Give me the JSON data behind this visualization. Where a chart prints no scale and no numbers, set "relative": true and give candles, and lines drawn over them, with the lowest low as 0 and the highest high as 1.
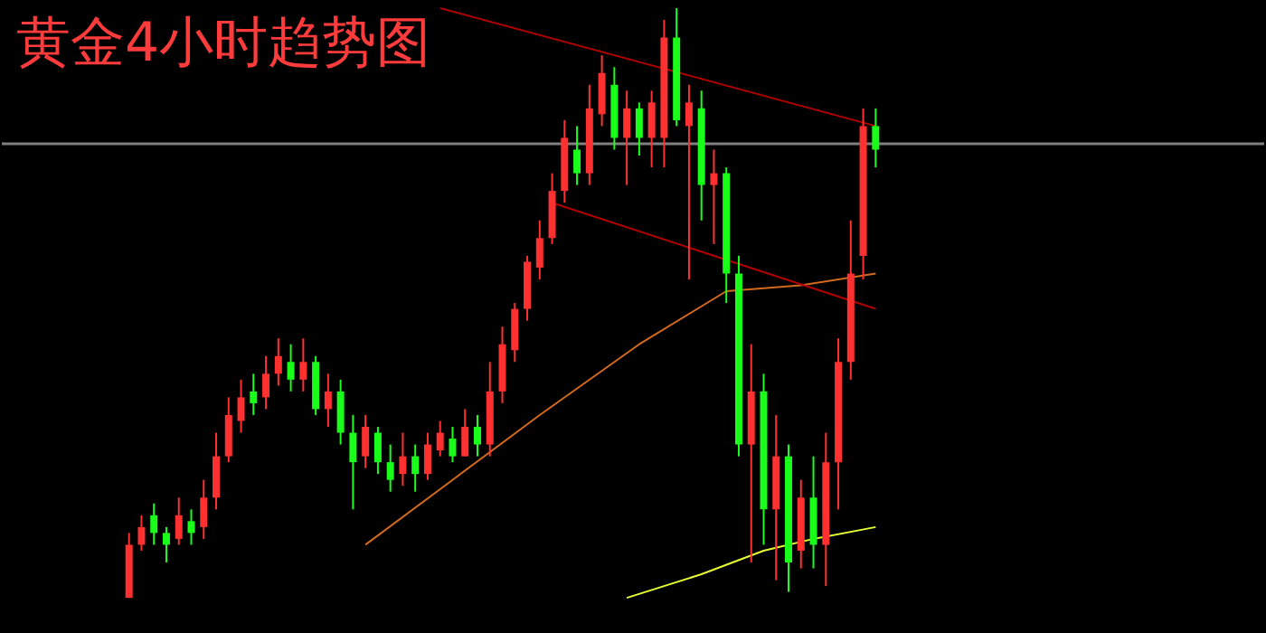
{
  "chart_data": {
    "type": "candlestick",
    "title": "黄金4小时趋势图",
    "relative": true,
    "categories": [
      null,
      null,
      null,
      null,
      null,
      null,
      null,
      null,
      null,
      null,
      null,
      null,
      null,
      null,
      null,
      null,
      null,
      null,
      null,
      null,
      null,
      null,
      null,
      null,
      null,
      null,
      null,
      null,
      null,
      null,
      null,
      null,
      null,
      null,
      null,
      null,
      null,
      null,
      null,
      null,
      null,
      null,
      null,
      null,
      null,
      null,
      null,
      null,
      null,
      null,
      null,
      null,
      null,
      null,
      null,
      null,
      null,
      null,
      null,
      null,
      null
    ],
    "ohlc": [
      [
        0,
        0.11,
        0,
        0.09
      ],
      [
        0.09,
        0.14,
        0.08,
        0.12
      ],
      [
        0.14,
        0.16,
        0.09,
        0.11
      ],
      [
        0.11,
        0.12,
        0.06,
        0.09
      ],
      [
        0.1,
        0.17,
        0.09,
        0.14
      ],
      [
        0.13,
        0.15,
        0.09,
        0.11
      ],
      [
        0.12,
        0.2,
        0.1,
        0.17
      ],
      [
        0.17,
        0.28,
        0.15,
        0.24
      ],
      [
        0.24,
        0.34,
        0.23,
        0.31
      ],
      [
        0.3,
        0.37,
        0.28,
        0.34
      ],
      [
        0.35,
        0.38,
        0.31,
        0.33
      ],
      [
        0.34,
        0.41,
        0.32,
        0.38
      ],
      [
        0.38,
        0.44,
        0.36,
        0.41
      ],
      [
        0.4,
        0.43,
        0.35,
        0.37
      ],
      [
        0.37,
        0.44,
        0.35,
        0.4
      ],
      [
        0.4,
        0.41,
        0.31,
        0.32
      ],
      [
        0.32,
        0.38,
        0.29,
        0.35
      ],
      [
        0.35,
        0.37,
        0.26,
        0.28
      ],
      [
        0.28,
        0.31,
        0.15,
        0.23
      ],
      [
        0.24,
        0.31,
        0.22,
        0.29
      ],
      [
        0.28,
        0.29,
        0.21,
        0.23
      ],
      [
        0.23,
        0.26,
        0.18,
        0.2
      ],
      [
        0.21,
        0.28,
        0.19,
        0.24
      ],
      [
        0.24,
        0.26,
        0.18,
        0.21
      ],
      [
        0.21,
        0.28,
        0.2,
        0.26
      ],
      [
        0.25,
        0.3,
        0.24,
        0.28
      ],
      [
        0.27,
        0.29,
        0.23,
        0.24
      ],
      [
        0.24,
        0.32,
        0.24,
        0.29
      ],
      [
        0.29,
        0.31,
        0.24,
        0.26
      ],
      [
        0.26,
        0.4,
        0.24,
        0.35
      ],
      [
        0.35,
        0.46,
        0.33,
        0.43
      ],
      [
        0.42,
        0.5,
        0.4,
        0.49
      ],
      [
        0.49,
        0.58,
        0.47,
        0.57
      ],
      [
        0.56,
        0.64,
        0.54,
        0.61
      ],
      [
        0.61,
        0.72,
        0.6,
        0.69
      ],
      [
        0.69,
        0.81,
        0.67,
        0.78
      ],
      [
        0.76,
        0.8,
        0.7,
        0.72
      ],
      [
        0.72,
        0.87,
        0.7,
        0.83
      ],
      [
        0.82,
        0.92,
        0.8,
        0.89
      ],
      [
        0.87,
        0.9,
        0.76,
        0.78
      ],
      [
        0.78,
        0.86,
        0.7,
        0.83
      ],
      [
        0.83,
        0.84,
        0.75,
        0.78
      ],
      [
        0.78,
        0.86,
        0.73,
        0.84
      ],
      [
        0.78,
        0.98,
        0.73,
        0.95
      ],
      [
        0.95,
        1,
        0.8,
        0.81
      ],
      [
        0.8,
        0.87,
        0.54,
        0.84
      ],
      [
        0.83,
        0.86,
        0.64,
        0.7
      ],
      [
        0.7,
        0.76,
        0.6,
        0.72
      ],
      [
        0.72,
        0.73,
        0.5,
        0.55
      ],
      [
        0.55,
        0.58,
        0.24,
        0.26
      ],
      [
        0.26,
        0.43,
        0.06,
        0.35
      ],
      [
        0.35,
        0.38,
        0.09,
        0.15
      ],
      [
        0.15,
        0.31,
        0.03,
        0.24
      ],
      [
        0.24,
        0.26,
        0.01,
        0.06
      ],
      [
        0.08,
        0.2,
        0.05,
        0.17
      ],
      [
        0.17,
        0.24,
        0.05,
        0.09
      ],
      [
        0.09,
        0.28,
        0.02,
        0.23
      ],
      [
        0.23,
        0.44,
        0.15,
        0.4
      ],
      [
        0.4,
        0.64,
        0.37,
        0.55
      ],
      [
        0.58,
        0.83,
        0.54,
        0.8
      ],
      [
        0.8,
        0.83,
        0.73,
        0.76
      ]
    ],
    "series": [
      {
        "type": "line",
        "color": "#e5ff33",
        "values": [
          null,
          null,
          null,
          null,
          null,
          null,
          null,
          null,
          null,
          null,
          null,
          null,
          null,
          null,
          null,
          null,
          null,
          null,
          null,
          null,
          null,
          null,
          null,
          null,
          null,
          null,
          null,
          null,
          null,
          null,
          null,
          null,
          null,
          null,
          null,
          null,
          null,
          null,
          null,
          null,
          0,
          null,
          null,
          null,
          null,
          null,
          0.04,
          null,
          null,
          null,
          null,
          0.08,
          null,
          null,
          null,
          0.1,
          null,
          null,
          null,
          null,
          0.12
        ]
      },
      {
        "type": "line",
        "color": "#d2691e",
        "values": [
          null,
          null,
          null,
          null,
          null,
          null,
          null,
          null,
          null,
          null,
          null,
          null,
          null,
          null,
          null,
          null,
          null,
          null,
          null,
          0.09,
          null,
          null,
          null,
          null,
          null,
          null,
          0.2,
          null,
          null,
          null,
          null,
          null,
          null,
          0.31,
          null,
          null,
          null,
          null,
          null,
          null,
          null,
          0.43,
          null,
          null,
          null,
          null,
          null,
          null,
          0.52,
          null,
          null,
          null,
          null,
          null,
          0.53,
          null,
          null,
          null,
          null,
          null,
          0.55
        ]
      },
      {
        "type": "line",
        "color": "#b00000",
        "values": [
          null,
          null,
          null,
          null,
          null,
          null,
          null,
          null,
          null,
          null,
          null,
          null,
          null,
          null,
          null,
          null,
          null,
          null,
          null,
          null,
          null,
          null,
          null,
          null,
          null,
          1.0,
          null,
          null,
          null,
          null,
          null,
          null,
          null,
          null,
          null,
          null,
          null,
          null,
          null,
          null,
          null,
          null,
          null,
          null,
          null,
          null,
          null,
          null,
          null,
          null,
          null,
          null,
          null,
          null,
          null,
          null,
          null,
          null,
          null,
          null,
          0.8
        ]
      },
      {
        "type": "line",
        "color": "#b00000",
        "values": [
          null,
          null,
          null,
          null,
          null,
          null,
          null,
          null,
          null,
          null,
          null,
          null,
          null,
          null,
          null,
          null,
          null,
          null,
          null,
          null,
          null,
          null,
          null,
          null,
          null,
          null,
          null,
          null,
          null,
          null,
          null,
          null,
          null,
          null,
          0.67,
          null,
          null,
          null,
          null,
          null,
          null,
          null,
          null,
          null,
          null,
          null,
          null,
          null,
          null,
          null,
          null,
          null,
          null,
          null,
          null,
          null,
          null,
          null,
          null,
          null,
          0.49
        ]
      }
    ],
    "ref_lines": [
      {
        "axis": "y",
        "value": 0.77,
        "color": "#808080"
      }
    ]
  }
}
